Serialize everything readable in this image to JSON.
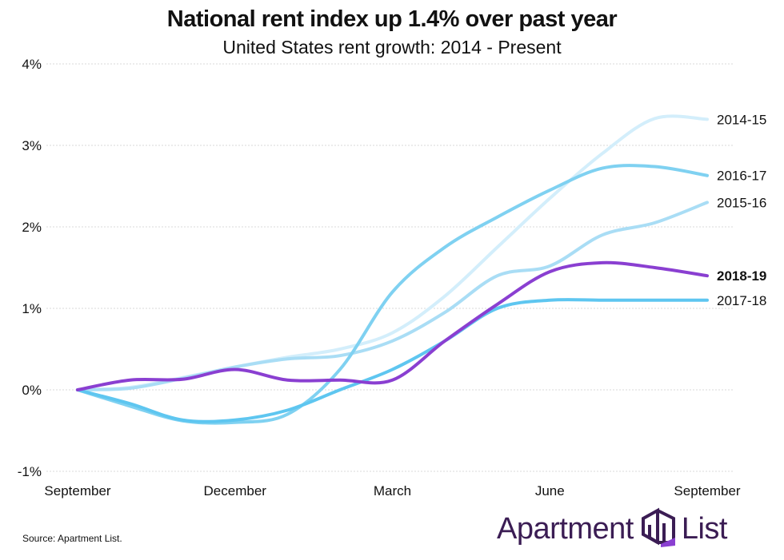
{
  "header": {
    "title": "National rent index up 1.4% over past year",
    "subtitle": "United States rent growth: 2014 - Present"
  },
  "footer": {
    "source": "Source: Apartment List.",
    "logo_word_left": "Apartment",
    "logo_word_right": "List",
    "logo_icon": "building-logo-icon"
  },
  "colors": {
    "2014-15": "#d3eefb",
    "2015-16": "#a9ddf5",
    "2016-17": "#7fd1f1",
    "2017-18": "#5ec6f0",
    "2018-19": "#8a3fd1",
    "grid": "#d9d9d9",
    "logo": "#3b1d54"
  },
  "chart_data": {
    "type": "line",
    "title": "National rent index up 1.4% over past year",
    "subtitle": "United States rent growth: 2014 - Present",
    "xlabel": "",
    "ylabel": "",
    "x_ticks": [
      "September",
      "December",
      "March",
      "June",
      "September"
    ],
    "x_range": [
      0,
      12
    ],
    "y_ticks": [
      "4%",
      "3%",
      "2%",
      "1%",
      "0%",
      "-1%"
    ],
    "y_tick_values": [
      4,
      3,
      2,
      1,
      0,
      -1
    ],
    "ylim": [
      -1,
      4
    ],
    "grid": "horizontal",
    "legend": "direct labels at line ends (right)",
    "series": [
      {
        "name": "2014-15",
        "x": [
          0,
          1,
          2,
          3,
          4,
          5,
          6,
          7,
          8,
          9,
          10,
          11,
          12
        ],
        "values": [
          0,
          0.03,
          0.15,
          0.28,
          0.4,
          0.5,
          0.7,
          1.15,
          1.75,
          2.35,
          2.9,
          3.33,
          3.32
        ]
      },
      {
        "name": "2015-16",
        "x": [
          0,
          1,
          2,
          3,
          4,
          5,
          6,
          7,
          8,
          9,
          10,
          11,
          12
        ],
        "values": [
          0,
          0.02,
          0.14,
          0.28,
          0.38,
          0.42,
          0.6,
          0.95,
          1.4,
          1.52,
          1.9,
          2.05,
          2.3
        ]
      },
      {
        "name": "2016-17",
        "x": [
          0,
          1,
          2,
          3,
          4,
          5,
          6,
          7,
          8,
          9,
          10,
          11,
          12
        ],
        "values": [
          0,
          -0.2,
          -0.38,
          -0.4,
          -0.3,
          0.25,
          1.2,
          1.75,
          2.12,
          2.45,
          2.72,
          2.74,
          2.63
        ]
      },
      {
        "name": "2017-18",
        "x": [
          0,
          1,
          2,
          3,
          4,
          5,
          6,
          7,
          8,
          9,
          10,
          11,
          12
        ],
        "values": [
          0,
          -0.17,
          -0.37,
          -0.37,
          -0.25,
          0.0,
          0.25,
          0.6,
          1.0,
          1.1,
          1.1,
          1.1,
          1.1
        ]
      },
      {
        "name": "2018-19",
        "x": [
          0,
          1,
          2,
          3,
          4,
          5,
          6,
          7,
          8,
          9,
          10,
          11,
          12
        ],
        "values": [
          0,
          0.12,
          0.13,
          0.25,
          0.12,
          0.12,
          0.12,
          0.6,
          1.05,
          1.45,
          1.56,
          1.5,
          1.4
        ]
      }
    ]
  }
}
